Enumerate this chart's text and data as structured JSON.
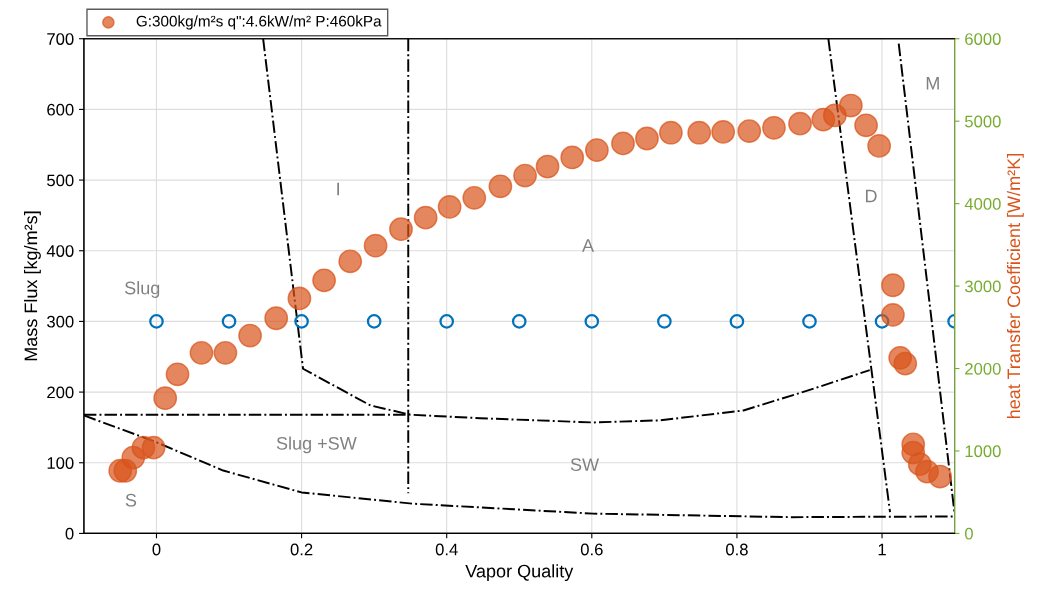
{
  "chart_data": {
    "type": "scatter",
    "xlabel": "Vapor Quality",
    "ylabel": "Mass Flux [kg/m²s]",
    "y2label": "heat Transfer Coefficient [W/m²K]",
    "xlim": [
      -0.1,
      1.1
    ],
    "xticks": [
      0,
      0.2,
      0.4,
      0.6,
      0.8,
      1
    ],
    "ylim": [
      0,
      700
    ],
    "yticks": [
      0,
      100,
      200,
      300,
      400,
      500,
      600,
      700
    ],
    "y2lim": [
      0,
      6000
    ],
    "y2ticks": [
      0,
      1000,
      2000,
      3000,
      4000,
      5000,
      6000
    ],
    "grid": true,
    "legend": "top left",
    "series": [
      {
        "type": "line",
        "color": "#000000",
        "line_style": "dashdot",
        "marker": "none",
        "x": [
          0.147,
          0.202,
          0.295,
          0.35,
          0.446,
          0.602,
          0.694,
          0.809,
          0.897,
          0.983
        ],
        "values": [
          700,
          233,
          181,
          168,
          163,
          157,
          160,
          174,
          202,
          231
        ]
      },
      {
        "type": "line",
        "color": "#000000",
        "line_style": "dashdot",
        "marker": "none",
        "x": [
          -0.1,
          0.347
        ],
        "values": [
          168,
          168
        ]
      },
      {
        "type": "line",
        "color": "#000000",
        "line_style": "dashdot",
        "marker": "none",
        "x": [
          0.347,
          0.347
        ],
        "values": [
          700,
          57
        ]
      },
      {
        "type": "line",
        "color": "#000000",
        "line_style": "dashdot",
        "marker": "none",
        "x": [
          -0.1,
          0.0,
          0.092,
          0.2,
          0.354,
          0.602,
          0.873,
          1.1
        ],
        "values": [
          167,
          129,
          89,
          58,
          42,
          28,
          23,
          24
        ]
      },
      {
        "type": "line",
        "color": "#000000",
        "line_style": "dashdot",
        "marker": "none",
        "x": [
          0.926,
          1.011
        ],
        "values": [
          700,
          30
        ]
      },
      {
        "type": "line",
        "color": "#000000",
        "line_style": "dashdot",
        "marker": "none",
        "x": [
          1.023,
          1.1
        ],
        "values": [
          693,
          28
        ]
      },
      {
        "color": "#0072bd",
        "marker": "circle",
        "x": [
          0,
          0.1,
          0.2,
          0.3,
          0.4,
          0.5,
          0.6,
          0.7,
          0.8,
          0.9,
          1.0,
          1.1
        ],
        "values": [
          300,
          300,
          300,
          300,
          300,
          300,
          300,
          300,
          300,
          300,
          300,
          300
        ]
      },
      {
        "name": "G:300kg/m²s q\":4.6kW/m² P:460kPa",
        "color": "#d95319",
        "marker": "circle",
        "axis": "y2",
        "x": [
          -0.05,
          -0.043,
          -0.032,
          -0.018,
          -0.004,
          0.012,
          0.029,
          0.062,
          0.095,
          0.129,
          0.165,
          0.197,
          0.231,
          0.267,
          0.302,
          0.337,
          0.371,
          0.404,
          0.438,
          0.474,
          0.508,
          0.539,
          0.573,
          0.607,
          0.643,
          0.676,
          0.709,
          0.748,
          0.781,
          0.817,
          0.851,
          0.887,
          0.919,
          0.935,
          0.957,
          0.978,
          0.996,
          1.015,
          1.015,
          1.025,
          1.032,
          1.043,
          1.043,
          1.052,
          1.062,
          1.08
        ],
        "values": [
          760,
          760,
          920,
          1040,
          1040,
          1640,
          1930,
          2190,
          2190,
          2400,
          2610,
          2850,
          3070,
          3300,
          3490,
          3690,
          3830,
          3960,
          4070,
          4210,
          4340,
          4450,
          4560,
          4650,
          4730,
          4790,
          4860,
          4860,
          4870,
          4880,
          4920,
          4970,
          5020,
          5070,
          5190,
          4950,
          4700,
          3010,
          2650,
          2130,
          2060,
          1080,
          980,
          840,
          750,
          690
        ]
      }
    ],
    "annotations": [
      "Slug",
      "I",
      "A",
      "D",
      "M",
      "Slug +SW",
      "SW",
      "S"
    ]
  }
}
